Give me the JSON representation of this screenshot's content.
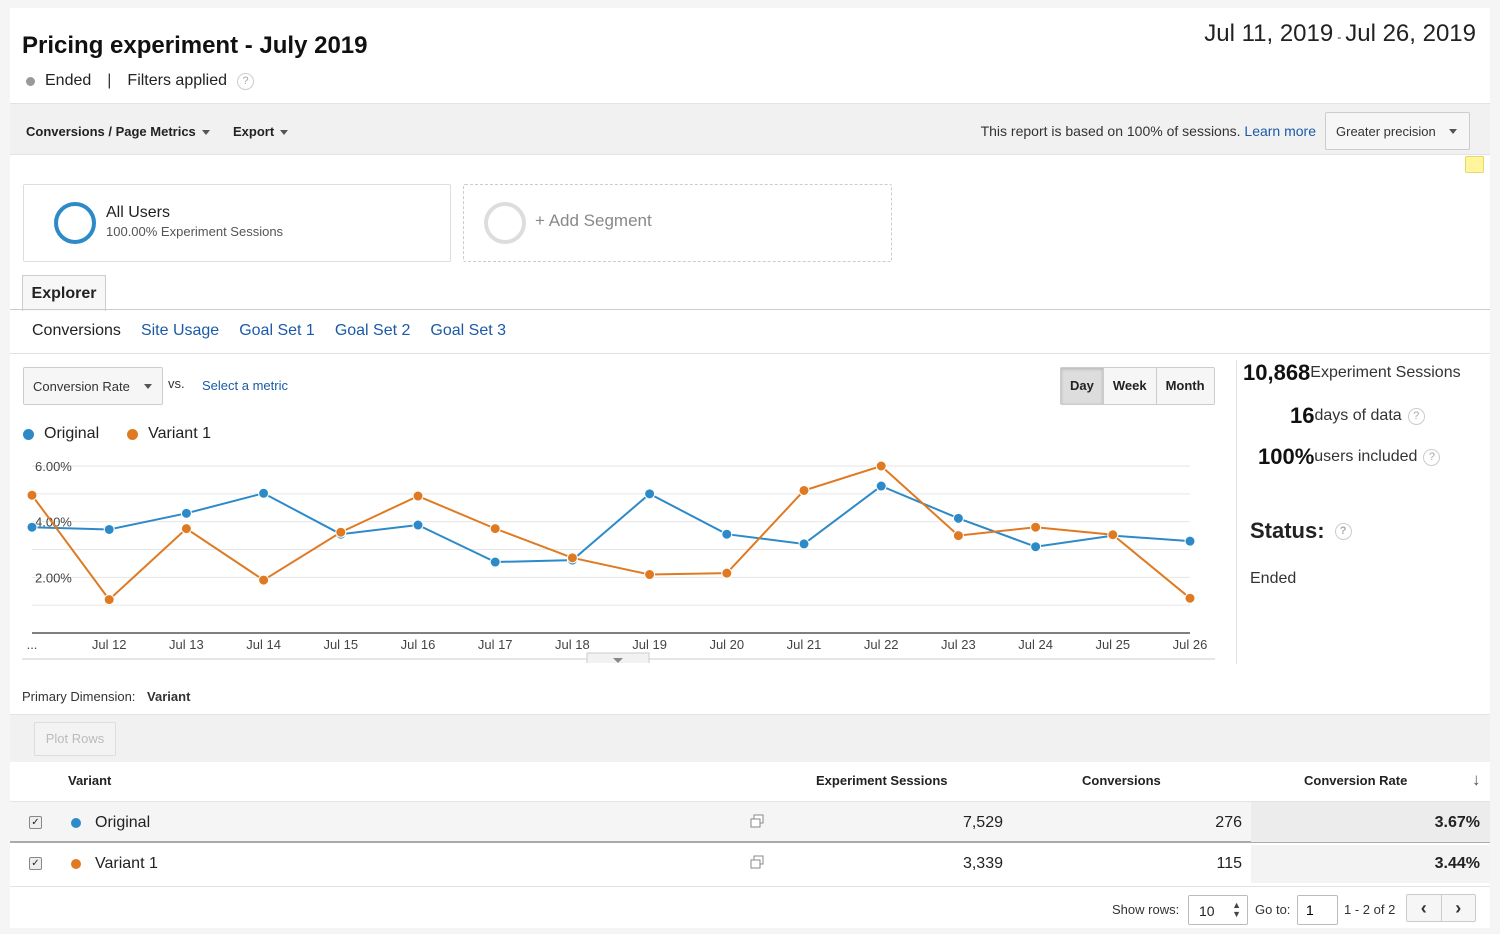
{
  "header": {
    "title": "Pricing experiment - July 2019",
    "date_start": "Jul 11, 2019",
    "date_sep": "-",
    "date_end": "Jul 26, 2019",
    "status": "Ended",
    "status_sep": "|",
    "filters": "Filters applied"
  },
  "toolbar": {
    "report_menu": "Conversions / Page Metrics",
    "export_menu": "Export",
    "note": "This report is based on 100% of sessions.",
    "learn_more": "Learn more",
    "precision": "Greater precision"
  },
  "segments": {
    "all_users_title": "All Users",
    "all_users_sub": "100.00% Experiment Sessions",
    "add_segment": "+ Add Segment"
  },
  "tabs": {
    "explorer": "Explorer",
    "subtabs": [
      "Conversions",
      "Site Usage",
      "Goal Set 1",
      "Goal Set 2",
      "Goal Set 3"
    ]
  },
  "chart_controls": {
    "metric": "Conversion Rate",
    "vs": "vs.",
    "select_metric": "Select a metric",
    "granularity": [
      "Day",
      "Week",
      "Month"
    ]
  },
  "chart_data": {
    "type": "line",
    "x": [
      "...",
      "Jul 12",
      "Jul 13",
      "Jul 14",
      "Jul 15",
      "Jul 16",
      "Jul 17",
      "Jul 18",
      "Jul 19",
      "Jul 20",
      "Jul 21",
      "Jul 22",
      "Jul 23",
      "Jul 24",
      "Jul 25",
      "Jul 26"
    ],
    "y_ticks": [
      "6.00%",
      "4.00%",
      "2.00%"
    ],
    "ylim": [
      0,
      6
    ],
    "series": [
      {
        "name": "Original",
        "color": "#2d8ac9",
        "values": [
          3.8,
          3.72,
          4.3,
          5.02,
          3.55,
          3.88,
          2.55,
          2.62,
          5.0,
          3.55,
          3.2,
          5.28,
          4.12,
          3.1,
          3.5,
          3.3
        ]
      },
      {
        "name": "Variant 1",
        "color": "#e07a22",
        "values": [
          4.95,
          1.2,
          3.75,
          1.9,
          3.62,
          4.92,
          3.75,
          2.7,
          2.1,
          2.15,
          5.12,
          6.0,
          3.5,
          3.8,
          3.53,
          1.25
        ]
      }
    ]
  },
  "stats": {
    "sessions_value": "10,868",
    "sessions_label": "Experiment Sessions",
    "days_value": "16",
    "days_label": "days of data",
    "users_value": "100%",
    "users_label": "users included",
    "status_label": "Status:",
    "status_value": "Ended"
  },
  "table": {
    "primary_dimension_label": "Primary Dimension:",
    "primary_dimension_value": "Variant",
    "plot_rows": "Plot Rows",
    "columns": [
      "Variant",
      "Experiment Sessions",
      "Conversions",
      "Conversion Rate"
    ],
    "rows": [
      {
        "name": "Original",
        "color": "#2d8ac9",
        "sessions": "7,529",
        "conversions": "276",
        "rate": "3.67%"
      },
      {
        "name": "Variant 1",
        "color": "#e07a22",
        "sessions": "3,339",
        "conversions": "115",
        "rate": "3.44%"
      }
    ]
  },
  "pager": {
    "show_rows_label": "Show rows:",
    "show_rows_value": "10",
    "goto_label": "Go to:",
    "goto_value": "1",
    "range": "1 - 2 of 2"
  },
  "icons": {
    "help": "?",
    "prev": "‹",
    "next": "›",
    "sort": "↓",
    "check": "✓"
  }
}
